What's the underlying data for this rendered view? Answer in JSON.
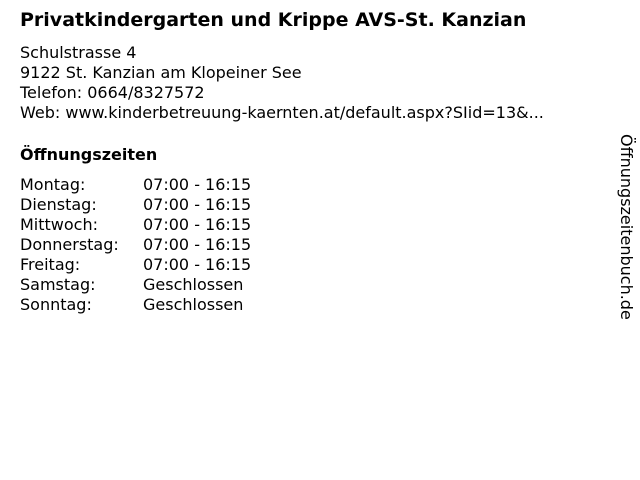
{
  "title": "Privatkindergarten und Krippe AVS-St. Kanzian",
  "address": {
    "street": "Schulstrasse 4",
    "city": "9122 St. Kanzian am Klopeiner See",
    "phone": "Telefon: 0664/8327572",
    "web": "Web: www.kinderbetreuung-kaernten.at/default.aspx?SIid=13&..."
  },
  "hours_heading": "Öffnungszeiten",
  "hours": [
    {
      "day": "Montag:",
      "time": "07:00 - 16:15"
    },
    {
      "day": "Dienstag:",
      "time": "07:00 - 16:15"
    },
    {
      "day": "Mittwoch:",
      "time": "07:00 - 16:15"
    },
    {
      "day": "Donnerstag:",
      "time": "07:00 - 16:15"
    },
    {
      "day": "Freitag:",
      "time": "07:00 - 16:15"
    },
    {
      "day": "Samstag:",
      "time": "Geschlossen"
    },
    {
      "day": "Sonntag:",
      "time": "Geschlossen"
    }
  ],
  "watermark": "Öffnungszeitenbuch.de"
}
